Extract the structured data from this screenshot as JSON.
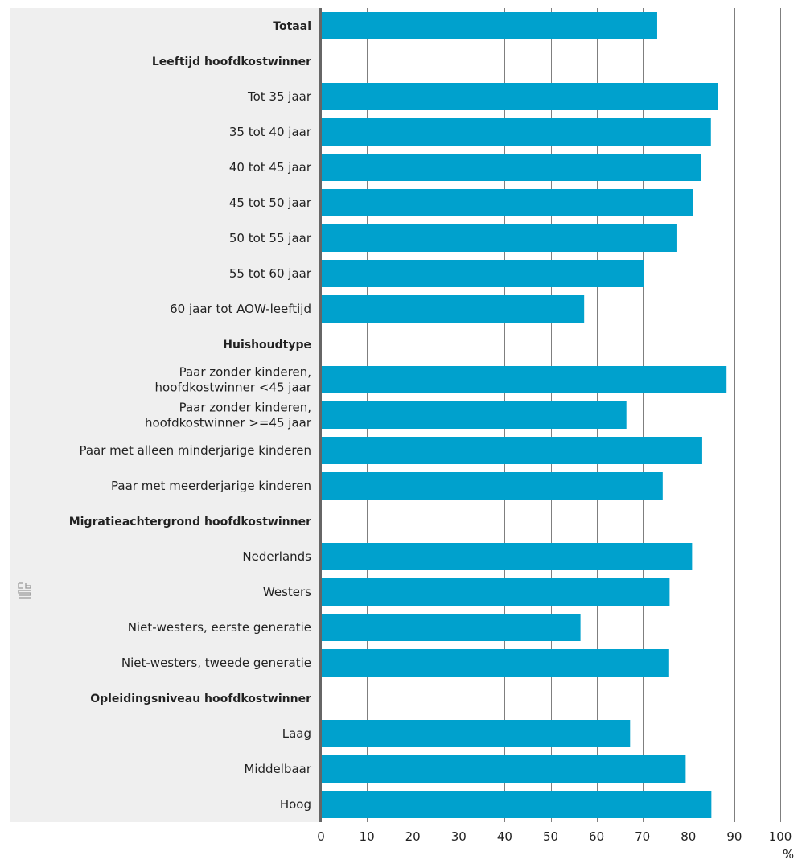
{
  "chart_data": {
    "type": "bar",
    "orientation": "horizontal",
    "categories": [
      {
        "label": "Totaal",
        "value": 73.2,
        "bold": true
      },
      {
        "label": "Leeftijd hoofdkostwinner",
        "value": null,
        "bold": true
      },
      {
        "label": "Tot 35 jaar",
        "value": 86.5
      },
      {
        "label": "35 tot 40 jaar",
        "value": 84.9
      },
      {
        "label": "40 tot 45 jaar",
        "value": 82.8
      },
      {
        "label": "45 tot 50 jaar",
        "value": 81.0
      },
      {
        "label": "50 tot 55 jaar",
        "value": 77.4
      },
      {
        "label": "55 tot 60 jaar",
        "value": 70.4
      },
      {
        "label": "60 jaar tot AOW-leeftijd",
        "value": 57.3
      },
      {
        "label": "Huishoudtype",
        "value": null,
        "bold": true
      },
      {
        "label": "Paar zonder kinderen,\nhoofdkostwinner <45 jaar",
        "value": 88.3
      },
      {
        "label": "Paar zonder kinderen,\nhoofdkostwinner >=45 jaar",
        "value": 66.5
      },
      {
        "label": "Paar met alleen minderjarige kinderen",
        "value": 83.0
      },
      {
        "label": "Paar met meerderjarige kinderen",
        "value": 74.4
      },
      {
        "label": "Migratieachtergrond hoofdkostwinner",
        "value": null,
        "bold": true
      },
      {
        "label": "Nederlands",
        "value": 80.8
      },
      {
        "label": "Westers",
        "value": 75.9
      },
      {
        "label": "Niet-westers, eerste generatie",
        "value": 56.5
      },
      {
        "label": "Niet-westers, tweede generatie",
        "value": 75.8
      },
      {
        "label": "Opleidingsniveau hoofdkostwinner",
        "value": null,
        "bold": true
      },
      {
        "label": "Laag",
        "value": 67.3
      },
      {
        "label": "Middelbaar",
        "value": 79.4
      },
      {
        "label": "Hoog",
        "value": 85.0
      }
    ],
    "x_ticks": [
      0,
      10,
      20,
      30,
      40,
      50,
      60,
      70,
      80,
      90,
      100
    ],
    "xlim": [
      0,
      100
    ],
    "xlabel": "%",
    "grid": true,
    "bar_color": "#00a1cd",
    "label_panel_color": "#efefef",
    "gridline_color": "#7f7f7f",
    "axis_color": "#666666",
    "logo_icon": "cbs-logo-icon"
  }
}
